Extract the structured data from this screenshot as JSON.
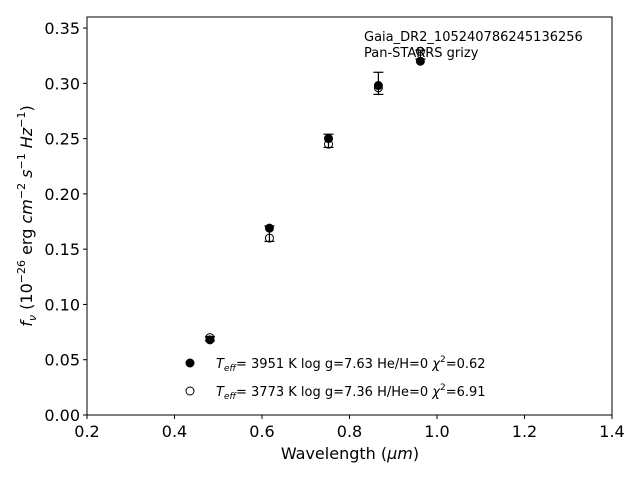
{
  "chart_data": {
    "type": "scatter",
    "xlabel_prefix": "Wavelength (",
    "xlabel_unit": "μm",
    "xlabel_suffix": ")",
    "ylabel_parts": {
      "f": "f",
      "nu": "ν",
      "open": " (10",
      "exp26": "−26",
      "erg": " erg ",
      "cm": "cm",
      "exp2": "−2",
      "s": " s",
      "exp1": "−1",
      "hz": " Hz",
      "exp1b": "−1",
      "close": ")"
    },
    "xlim": [
      0.2,
      1.4
    ],
    "ylim": [
      0.0,
      0.36
    ],
    "xticks": [
      0.2,
      0.4,
      0.6,
      0.8,
      1.0,
      1.2,
      1.4
    ],
    "xtick_labels": [
      "0.2",
      "0.4",
      "0.6",
      "0.8",
      "1.0",
      "1.2",
      "1.4"
    ],
    "yticks": [
      0.0,
      0.05,
      0.1,
      0.15,
      0.2,
      0.25,
      0.3,
      0.35
    ],
    "ytick_labels": [
      "0.00",
      "0.05",
      "0.10",
      "0.15",
      "0.20",
      "0.25",
      "0.30",
      "0.35"
    ],
    "grid": false,
    "annotation": [
      "Gaia_DR2_105240786245136256",
      "Pan-STARRS grizy"
    ],
    "observed": {
      "x": [
        0.481,
        0.617,
        0.752,
        0.866,
        0.962
      ],
      "y": [
        0.069,
        0.164,
        0.248,
        0.3,
        0.326
      ],
      "yerr": [
        0.002,
        0.007,
        0.006,
        0.01,
        0.004
      ]
    },
    "series": [
      {
        "marker": "filled",
        "x": [
          0.481,
          0.617,
          0.752,
          0.866,
          0.962
        ],
        "y": [
          0.068,
          0.169,
          0.25,
          0.298,
          0.32
        ]
      },
      {
        "marker": "open",
        "x": [
          0.481,
          0.617,
          0.752,
          0.866,
          0.962
        ],
        "y": [
          0.07,
          0.16,
          0.245,
          0.296,
          0.329
        ]
      }
    ],
    "legend": [
      {
        "marker": "filled",
        "T": "T",
        "eff": "eff",
        "temp": "=  3951 K  log g=7.63  He/H=0  ",
        "chi": "χ",
        "two": "2",
        "chi_val": "=0.62"
      },
      {
        "marker": "open",
        "T": "T",
        "eff": "eff",
        "temp": "=  3773 K  log g=7.36  H/He=0  ",
        "chi": "χ",
        "two": "2",
        "chi_val": "=6.91"
      }
    ],
    "legend_position": "lower-center"
  }
}
